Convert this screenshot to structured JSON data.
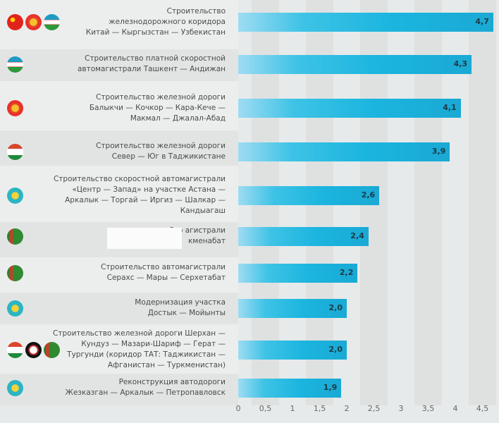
{
  "chart_data": {
    "type": "bar",
    "orientation": "horizontal",
    "title": "",
    "xlabel": "",
    "ylabel": "",
    "xlim": [
      0,
      4.7
    ],
    "x_ticks": [
      "0",
      "0,5",
      "1",
      "1,5",
      "2",
      "2,5",
      "3",
      "3,5",
      "4",
      "4,5"
    ],
    "grid": "alternating vertical stripes",
    "categories": [
      {
        "lines": [
          "Строительство",
          "железнодорожного коридора",
          "Китай — Кыргызстан — Узбекистан"
        ],
        "flags": [
          "china-flag-icon",
          "kyrgyzstan-flag-icon",
          "uzbekistan-flag-icon"
        ]
      },
      {
        "lines": [
          "Строительство платной скоростной",
          "автомагистрали Ташкент — Андижан"
        ],
        "flags": [
          "uzbekistan-flag-icon"
        ]
      },
      {
        "lines": [
          "Строительство железной дороги",
          "Балыкчи — Кочкор — Кара-Кече —",
          "Макмал — Джалал-Абад"
        ],
        "flags": [
          "kyrgyzstan-flag-icon"
        ]
      },
      {
        "lines": [
          "Строительство железной дороги",
          "Север — Юг в Таджикистане"
        ],
        "flags": [
          "tajikistan-flag-icon"
        ]
      },
      {
        "lines": [
          "Строительство скоростной автомагистрали",
          "«Центр — Запад» на участке Астана —",
          "Аркалык — Торгай — Иргиз — Шалкар —",
          "Кандыагаш"
        ],
        "flags": [
          "kazakhstan-flag-icon"
        ]
      },
      {
        "lines": [
          "Стр                              агистрали",
          "кменабат"
        ],
        "flags": [
          "turkmenistan-flag-icon"
        ],
        "redacted": true
      },
      {
        "lines": [
          "Строительство автомагистрали",
          "Серахс — Мары — Серхетабат"
        ],
        "flags": [
          "turkmenistan-flag-icon"
        ]
      },
      {
        "lines": [
          "Модернизация участка",
          "Достык — Мойынты"
        ],
        "flags": [
          "kazakhstan-flag-icon"
        ]
      },
      {
        "lines": [
          "Строительство железной дороги Шерхан —",
          "Кундуз — Мазари-Шариф — Герат —",
          "Тургунди (коридор ТАТ: Таджикистан —",
          "Афганистан — Туркменистан)"
        ],
        "flags": [
          "tajikistan-flag-icon",
          "afghanistan-flag-icon",
          "turkmenistan-flag-icon"
        ]
      },
      {
        "lines": [
          "Реконструкция автодороги",
          "Жезказган — Аркалык — Петропавловск"
        ],
        "flags": [
          "kazakhstan-flag-icon"
        ]
      }
    ],
    "values": [
      4.7,
      4.3,
      4.1,
      3.9,
      2.6,
      2.4,
      2.2,
      2.0,
      2.0,
      1.9
    ],
    "value_labels": [
      "4,7",
      "4,3",
      "4,1",
      "3,9",
      "2,6",
      "2,4",
      "2,2",
      "2,0",
      "2,0",
      "1,9"
    ],
    "colors": {
      "bar_start": "#9fdcf2",
      "bar_end": "#1aa9d4",
      "band_light": "#eceeee",
      "band_dark": "#e2e4e4"
    }
  }
}
